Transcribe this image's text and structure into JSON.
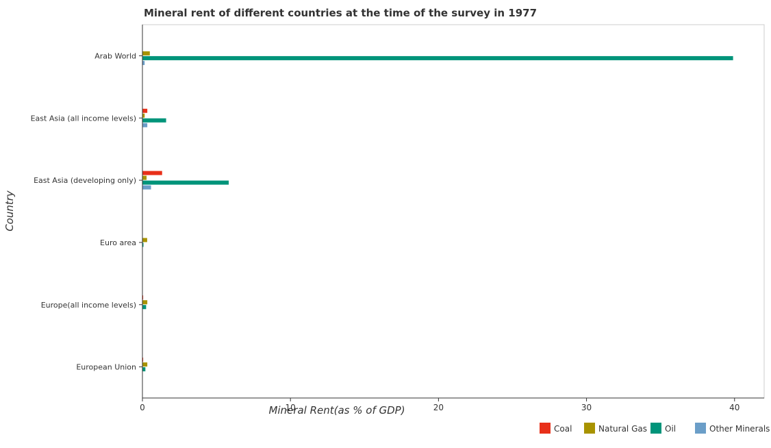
{
  "chart_data": {
    "type": "bar",
    "orientation": "horizontal",
    "title": "Mineral rent of different countries at the time of the survey in 1977",
    "xlabel": "Mineral Rent(as % of GDP)",
    "ylabel": "Country",
    "xlim": [
      0,
      42
    ],
    "xticks": [
      "0",
      "10",
      "20",
      "30",
      "40"
    ],
    "grid": false,
    "legend_position": "bottom-right",
    "categories": [
      "Arab World",
      "East Asia (all income levels)",
      "East Asia (developing only)",
      "Euro area",
      "Europe(all income levels)",
      "European Union"
    ],
    "series": [
      {
        "name": "Coal",
        "color": "#e8301a",
        "values": [
          0.0,
          0.33,
          1.33,
          0.02,
          0.05,
          0.05
        ]
      },
      {
        "name": "Natural Gas",
        "color": "#a89300",
        "values": [
          0.5,
          0.15,
          0.28,
          0.32,
          0.33,
          0.33
        ]
      },
      {
        "name": "Oil",
        "color": "#00947a",
        "values": [
          39.9,
          1.6,
          5.83,
          0.07,
          0.25,
          0.2
        ]
      },
      {
        "name": "Other Minerals",
        "color": "#6b9ec8",
        "values": [
          0.15,
          0.33,
          0.58,
          0.01,
          0.02,
          0.02
        ]
      }
    ]
  }
}
